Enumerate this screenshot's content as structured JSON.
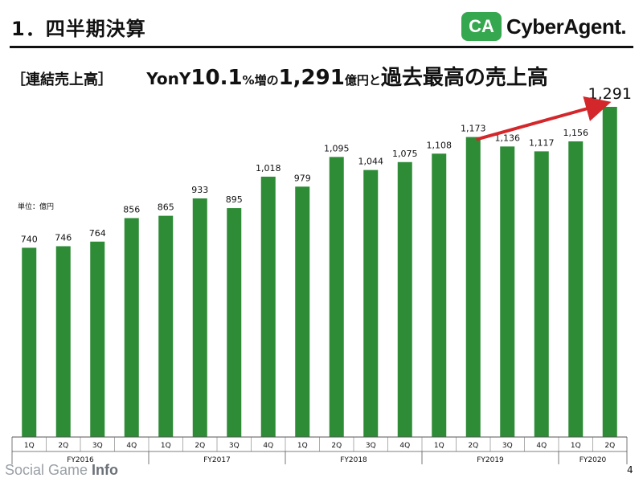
{
  "header": {
    "title": "1．四半期決算",
    "logo_mark": "CA",
    "logo_text": "CyberAgent."
  },
  "subtitle": {
    "bracket": "［連結売上高］",
    "yony": "YonY",
    "growth": "10.1",
    "pct": "%",
    "increase": "増の",
    "amount": "1,291",
    "unit": "億円",
    "connector": "と",
    "tail": "過去最高の売上高"
  },
  "unit_label": "単位：億円",
  "page_number": "4",
  "watermark": {
    "part1": "Social Game ",
    "part2": "Info"
  },
  "colors": {
    "bar": "#2e8b36",
    "arrow": "#d3272b",
    "text": "#111111"
  },
  "chart_data": {
    "type": "bar",
    "title": "",
    "categories": [
      "1Q",
      "2Q",
      "3Q",
      "4Q",
      "1Q",
      "2Q",
      "3Q",
      "4Q",
      "1Q",
      "2Q",
      "3Q",
      "4Q",
      "1Q",
      "2Q",
      "3Q",
      "4Q",
      "1Q",
      "2Q"
    ],
    "values": [
      740,
      746,
      764,
      856,
      865,
      933,
      895,
      1018,
      979,
      1095,
      1044,
      1075,
      1108,
      1173,
      1136,
      1117,
      1156,
      1291
    ],
    "value_labels": [
      "740",
      "746",
      "764",
      "856",
      "865",
      "933",
      "895",
      "1,018",
      "979",
      "1,095",
      "1,044",
      "1,075",
      "1,108",
      "1,173",
      "1,136",
      "1,117",
      "1,156",
      "1,291"
    ],
    "groups": [
      {
        "label": "FY2016",
        "start": 0,
        "count": 4
      },
      {
        "label": "FY2017",
        "start": 4,
        "count": 4
      },
      {
        "label": "FY2018",
        "start": 8,
        "count": 4
      },
      {
        "label": "FY2019",
        "start": 12,
        "count": 4
      },
      {
        "label": "FY2020",
        "start": 16,
        "count": 2
      }
    ],
    "ylim": [
      0,
      1291
    ],
    "grid": false,
    "arrow": {
      "from_index": 13,
      "to_index": 17
    }
  }
}
